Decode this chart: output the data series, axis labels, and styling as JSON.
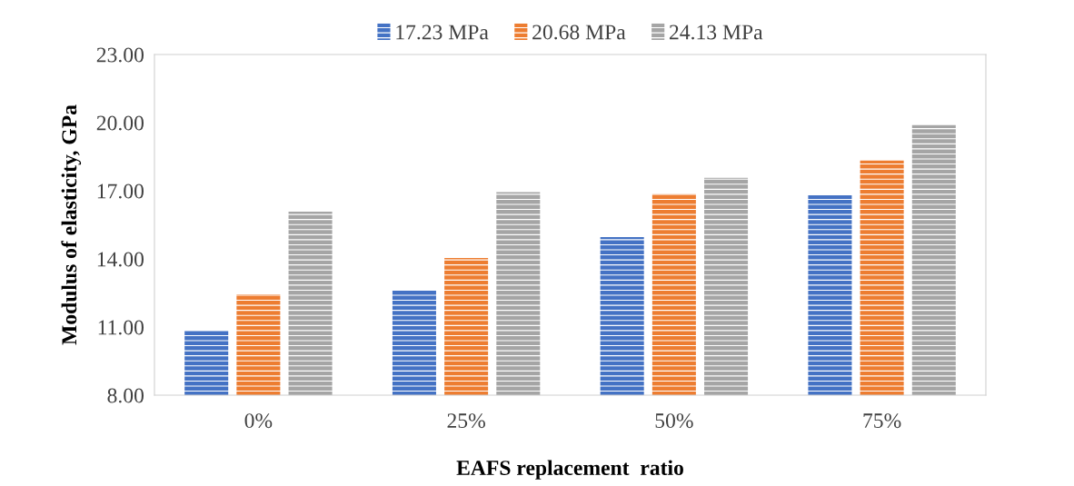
{
  "chart_data": {
    "type": "bar",
    "xlabel": "EAFS replacement  ratio",
    "ylabel": "Modulus of elasticity, GPa",
    "categories": [
      "0%",
      "25%",
      "50%",
      "75%"
    ],
    "series": [
      {
        "name": "17.23 MPa",
        "color": "#4472c4",
        "values": [
          10.84,
          12.6,
          14.96,
          16.8
        ]
      },
      {
        "name": "20.68 MPa",
        "color": "#ed7d31",
        "values": [
          12.44,
          14.04,
          16.87,
          18.33
        ]
      },
      {
        "name": "24.13 MPa",
        "color": "#a5a5a5",
        "values": [
          16.08,
          16.94,
          17.57,
          19.89
        ]
      }
    ],
    "ylim": [
      8,
      23
    ],
    "yticks": [
      {
        "value": 8,
        "label": "8.00"
      },
      {
        "value": 11,
        "label": "11.00"
      },
      {
        "value": 14,
        "label": "14.00"
      },
      {
        "value": 17,
        "label": "17.00"
      },
      {
        "value": 20,
        "label": "20.00"
      },
      {
        "value": 23,
        "label": "23.00"
      }
    ],
    "grid": false,
    "legend": "top"
  }
}
